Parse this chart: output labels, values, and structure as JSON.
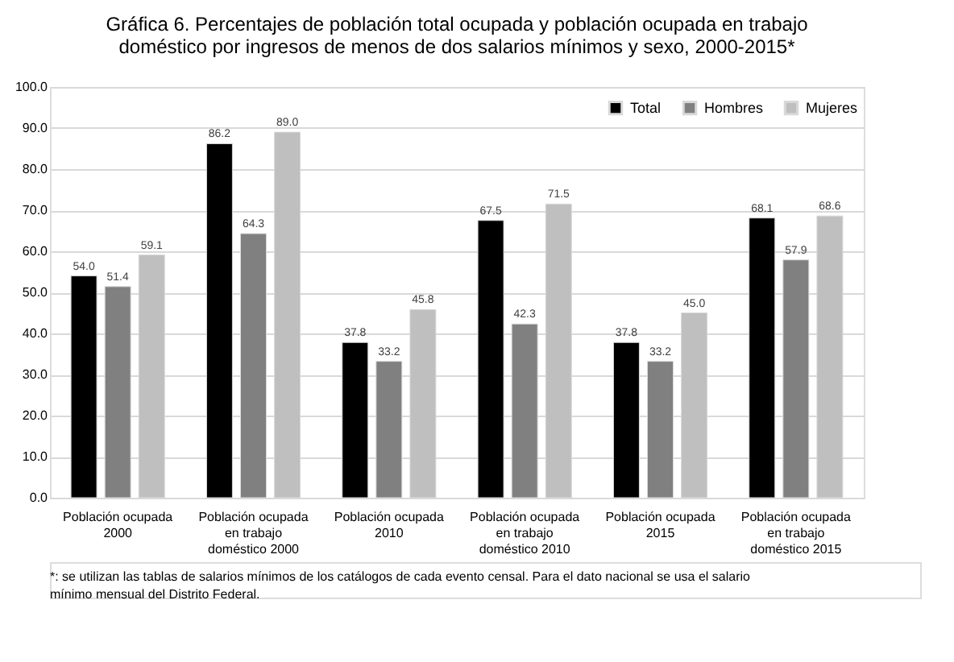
{
  "chart_data": {
    "type": "bar",
    "title": "Gráfica 6. Percentajes de población total ocupada y población ocupada en trabajo doméstico por ingresos de menos de dos salarios mínimos y sexo, 2000-2015*",
    "categories": [
      "Población ocupada 2000",
      "Población ocupada en trabajo doméstico 2000",
      "Población ocupada 2010",
      "Población ocupada en trabajo doméstico 2010",
      "Población ocupada 2015",
      "Población ocupada en trabajo doméstico 2015"
    ],
    "series": [
      {
        "name": "Total",
        "color": "#000000",
        "values": [
          54.0,
          86.2,
          37.8,
          67.5,
          37.8,
          68.1
        ],
        "value_labels": [
          "54.0",
          "86.2",
          "37.8",
          "67.5",
          "37.8",
          "68.1"
        ]
      },
      {
        "name": "Hombres",
        "color": "#808080",
        "values": [
          51.4,
          64.3,
          33.2,
          42.3,
          33.2,
          57.9
        ],
        "value_labels": [
          "51.4",
          "64.3",
          "33.2",
          "42.3",
          "33.2",
          "57.9"
        ]
      },
      {
        "name": "Mujeres",
        "color": "#bfbfbf",
        "values": [
          59.1,
          89.0,
          45.8,
          71.5,
          45.0,
          68.6
        ],
        "value_labels": [
          "59.1",
          "89.0",
          "45.8",
          "71.5",
          "45.0",
          "68.6"
        ]
      }
    ],
    "ylim": [
      0,
      100
    ],
    "yticks": [
      {
        "value": 0,
        "label": "0.0"
      },
      {
        "value": 10,
        "label": "10.0"
      },
      {
        "value": 20,
        "label": "20.0"
      },
      {
        "value": 30,
        "label": "30.0"
      },
      {
        "value": 40,
        "label": "40.0"
      },
      {
        "value": 50,
        "label": "50.0"
      },
      {
        "value": 60,
        "label": "60.0"
      },
      {
        "value": 70,
        "label": "70.0"
      },
      {
        "value": 80,
        "label": "80.0"
      },
      {
        "value": 90,
        "label": "90.0"
      },
      {
        "value": 100,
        "label": "100.0"
      }
    ],
    "grid": "y",
    "legend": "top right",
    "annotations": [
      "*: se utilizan las tablas de salarios mínimos de los catálogos de cada evento censal. Para el dato nacional se usa el salario mínimo mensual del Distrito Federal."
    ]
  }
}
